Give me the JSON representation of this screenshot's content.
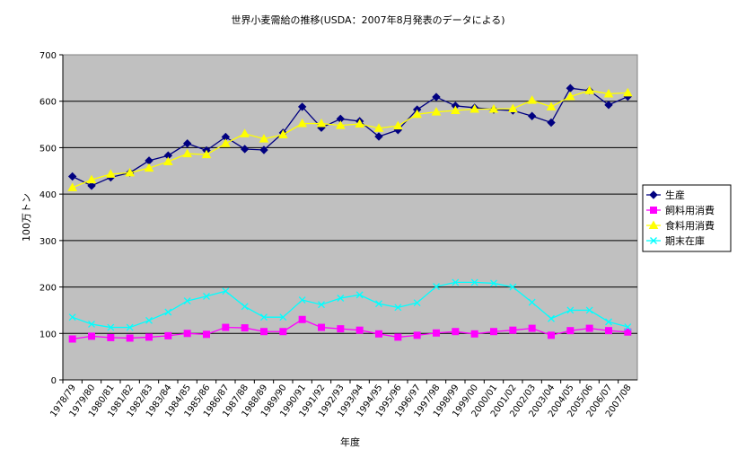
{
  "chart_data": {
    "type": "line",
    "title": "世界小麦需給の推移(USDA：2007年8月発表のデータによる)",
    "xlabel": "年度",
    "ylabel": "100万トン",
    "ylim": [
      0,
      700
    ],
    "yticks": [
      0,
      100,
      200,
      300,
      400,
      500,
      600,
      700
    ],
    "grid": "horizontal",
    "legend_position": "right",
    "plot_background": "#c0c0c0",
    "categories": [
      "1978/79",
      "1979/80",
      "1980/81",
      "1981/82",
      "1982/83",
      "1983/84",
      "1984/85",
      "1985/86",
      "1986/87",
      "1987/88",
      "1988/89",
      "1989/90",
      "1990/91",
      "1991/92",
      "1992/93",
      "1993/94",
      "1994/95",
      "1995/96",
      "1996/97",
      "1997/98",
      "1998/99",
      "1999/00",
      "2000/01",
      "2001/02",
      "2002/03",
      "2003/04",
      "2004/05",
      "2005/06",
      "2006/07",
      "2007/08"
    ],
    "series": [
      {
        "name": "生産",
        "color": "#000080",
        "marker": "diamond",
        "values": [
          438,
          418,
          436,
          446,
          472,
          483,
          509,
          494,
          523,
          497,
          495,
          532,
          588,
          543,
          562,
          557,
          524,
          538,
          582,
          609,
          590,
          586,
          582,
          580,
          568,
          554,
          628,
          623,
          592,
          610
        ]
      },
      {
        "name": "飼料用消費",
        "color": "#ff00ff",
        "marker": "square",
        "values": [
          88,
          94,
          91,
          90,
          92,
          95,
          100,
          98,
          113,
          112,
          104,
          104,
          130,
          113,
          110,
          107,
          99,
          92,
          96,
          101,
          104,
          99,
          104,
          107,
          111,
          96,
          106,
          111,
          106,
          103
        ]
      },
      {
        "name": "食料用消費",
        "color": "#ffff00",
        "marker": "triangle",
        "values": [
          414,
          431,
          443,
          446,
          456,
          470,
          487,
          485,
          509,
          530,
          519,
          528,
          552,
          552,
          548,
          551,
          542,
          547,
          572,
          577,
          580,
          583,
          583,
          584,
          602,
          588,
          610,
          623,
          616,
          618
        ]
      },
      {
        "name": "期末在庫",
        "color": "#00ffff",
        "marker": "x",
        "values": [
          135,
          120,
          113,
          113,
          128,
          146,
          170,
          180,
          191,
          158,
          135,
          135,
          172,
          162,
          176,
          183,
          164,
          156,
          166,
          201,
          210,
          210,
          208,
          200,
          167,
          132,
          150,
          150,
          125,
          114
        ]
      }
    ]
  }
}
